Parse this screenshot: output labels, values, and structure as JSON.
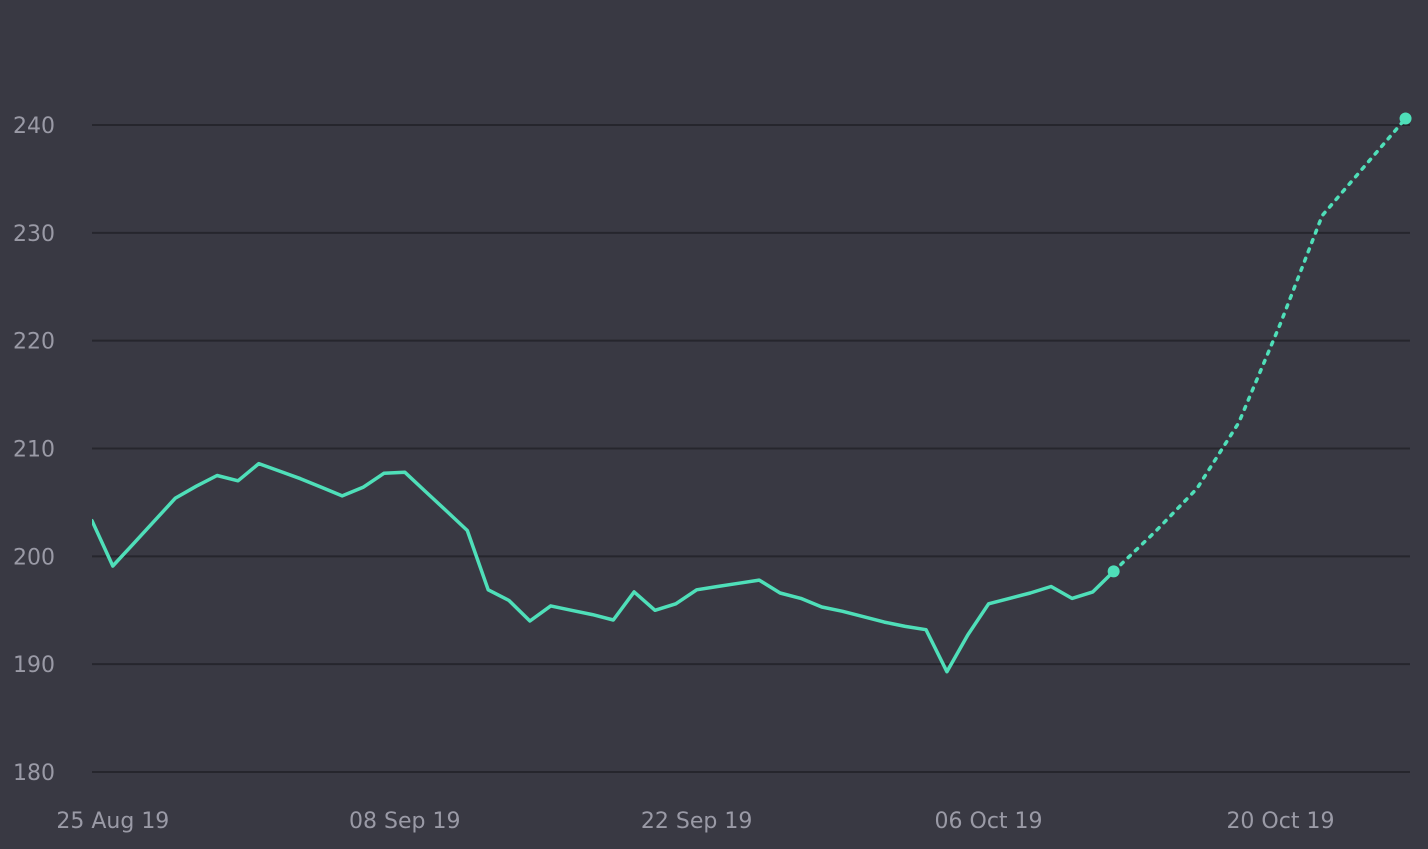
{
  "chart_data": {
    "type": "line",
    "title": "",
    "xlabel": "",
    "ylabel": "",
    "grid": true,
    "legend": "none",
    "ylim": [
      180,
      240
    ],
    "xlim": [
      "2019-08-24",
      "2019-10-24"
    ],
    "y_ticks": [
      180,
      190,
      200,
      210,
      220,
      230,
      240
    ],
    "x_ticks": [
      {
        "date": "2019-08-25",
        "label": "25 Aug 19"
      },
      {
        "date": "2019-09-08",
        "label": "08 Sep 19"
      },
      {
        "date": "2019-09-22",
        "label": "22 Sep 19"
      },
      {
        "date": "2019-10-06",
        "label": "06 Oct 19"
      },
      {
        "date": "2019-10-20",
        "label": "20 Oct 19"
      }
    ],
    "colors": {
      "background": "#393943",
      "grid": "#26262d",
      "line": "#4fdfb9",
      "tick_text": "#9a9aa6"
    },
    "series": [
      {
        "style": "solid",
        "marker_last": true,
        "points": [
          [
            "2019-08-24",
            203.3
          ],
          [
            "2019-08-25",
            199.1
          ],
          [
            "2019-08-26",
            201.2
          ],
          [
            "2019-08-27",
            203.3
          ],
          [
            "2019-08-28",
            205.4
          ],
          [
            "2019-08-29",
            206.5
          ],
          [
            "2019-08-30",
            207.5
          ],
          [
            "2019-08-31",
            207.0
          ],
          [
            "2019-09-01",
            208.6
          ],
          [
            "2019-09-02",
            207.9
          ],
          [
            "2019-09-03",
            207.2
          ],
          [
            "2019-09-04",
            206.4
          ],
          [
            "2019-09-05",
            205.6
          ],
          [
            "2019-09-06",
            206.4
          ],
          [
            "2019-09-07",
            207.7
          ],
          [
            "2019-09-08",
            207.8
          ],
          [
            "2019-09-09",
            206.0
          ],
          [
            "2019-09-10",
            204.2
          ],
          [
            "2019-09-11",
            202.4
          ],
          [
            "2019-09-12",
            196.9
          ],
          [
            "2019-09-13",
            195.9
          ],
          [
            "2019-09-14",
            194.0
          ],
          [
            "2019-09-15",
            195.4
          ],
          [
            "2019-09-16",
            195.0
          ],
          [
            "2019-09-17",
            194.6
          ],
          [
            "2019-09-18",
            194.1
          ],
          [
            "2019-09-19",
            196.7
          ],
          [
            "2019-09-20",
            195.0
          ],
          [
            "2019-09-21",
            195.6
          ],
          [
            "2019-09-22",
            196.9
          ],
          [
            "2019-09-23",
            197.2
          ],
          [
            "2019-09-24",
            197.5
          ],
          [
            "2019-09-25",
            197.8
          ],
          [
            "2019-09-26",
            196.6
          ],
          [
            "2019-09-27",
            196.1
          ],
          [
            "2019-09-28",
            195.3
          ],
          [
            "2019-09-29",
            194.9
          ],
          [
            "2019-09-30",
            194.4
          ],
          [
            "2019-10-01",
            193.9
          ],
          [
            "2019-10-02",
            193.5
          ],
          [
            "2019-10-03",
            193.2
          ],
          [
            "2019-10-04",
            189.3
          ],
          [
            "2019-10-05",
            192.7
          ],
          [
            "2019-10-06",
            195.6
          ],
          [
            "2019-10-07",
            196.1
          ],
          [
            "2019-10-08",
            196.6
          ],
          [
            "2019-10-09",
            197.2
          ],
          [
            "2019-10-10",
            196.1
          ],
          [
            "2019-10-11",
            196.7
          ],
          [
            "2019-10-12",
            198.6
          ]
        ]
      },
      {
        "style": "dotted",
        "marker_last": true,
        "points": [
          [
            "2019-10-12",
            198.6
          ],
          [
            "2019-10-14",
            202.3
          ],
          [
            "2019-10-16",
            206.3
          ],
          [
            "2019-10-18",
            212.4
          ],
          [
            "2019-10-20",
            221.6
          ],
          [
            "2019-10-22",
            231.6
          ],
          [
            "2019-10-26",
            240.6
          ]
        ]
      }
    ]
  }
}
